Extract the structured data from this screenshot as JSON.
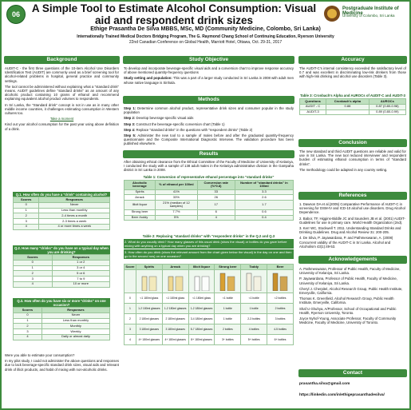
{
  "header": {
    "badge": "06",
    "title": "A Simple Tool to Estimate Alcohol Consumption: Visual aid and respondent drink sizes",
    "author": "Ethige Prasantha De Silva MBBS, MSc, MD (Community Medicine, Colombo, Sri Lanka)",
    "affiliation": "Internationally Trained Medical Doctors Bridging Program, The G. Raymond Chang School of Continuing Education, Ryerson University",
    "conference": "22nd Canadian Conference on Global Health, Marriott Hotel, Ottawa, Oct. 29-31, 2017",
    "logo": "Postgraduate Institute of Medicine",
    "logo_sub": "University of Colombo, Sri Lanka"
  },
  "background": {
    "heading": "Background",
    "paragraphs": [
      "AUDIT-C - the first three questions of the 10-item Alcohol Use Disorders Identification Test (AUDIT) are commonly used as a brief screening tool for alcohol-related problems in hospital, general practice and community settings.",
      "The tool cannot be administered without explaining what a \"standard drink\" means. AUDIT guidelines define \"standard drinks\" as an amount of any alcoholic product containing 10 grams of ethanol and recommend explaining equivalent alcohol product volumes to respondents.",
      "In Sri Lanka, the \"Standard drink\" concept is not in use as in many other middle income countries, it challenges estimating consumption in Western cultures too."
    ],
    "link": "Take a moment",
    "prompt": "Kind out your alcohol consumption for the past year using above definition of a drink."
  },
  "q1": {
    "caption": "Q.1. How often do you have a \"drink\" containing alcohol?",
    "header": [
      "Scores",
      "Responses"
    ],
    "rows": [
      [
        "0",
        "Never"
      ],
      [
        "1",
        "Less than monthly"
      ],
      [
        "2",
        "2-4 times a month"
      ],
      [
        "3",
        "2-3 times a week"
      ],
      [
        "4",
        "4 or more times a week"
      ]
    ]
  },
  "q2": {
    "caption": "Q.2. How many \"drinks\" do you have on a typical day when you are drinking?",
    "header": [
      "Scores",
      "Responses"
    ],
    "rows": [
      [
        "0",
        "1 or 2"
      ],
      [
        "1",
        "3 or 4"
      ],
      [
        "2",
        "5 or 6"
      ],
      [
        "3",
        "7 to 9"
      ],
      [
        "4",
        "10 or more"
      ]
    ]
  },
  "q3": {
    "caption": "Q.3. How often do you have six or more \"drinks\" on one occasion?",
    "header": [
      "Scores",
      "Responses"
    ],
    "rows": [
      [
        "0",
        "Never"
      ],
      [
        "1",
        "Less than monthly"
      ],
      [
        "2",
        "Monthly"
      ],
      [
        "3",
        "Weekly"
      ],
      [
        "4",
        "Daily or almost daily"
      ]
    ]
  },
  "left_end": {
    "question": "Were you able to estimate your consumption?",
    "text": "In my pilot study, I could not administer the above questions and responses due to lack beverage-specific standard drink sizes, visual aids and relevant drink of illicit products, and habit of mixing with non-alcoholic drinks."
  },
  "objective": {
    "heading": "Study Objective",
    "text": "To develop and incorporate beverage-specific visual aids and a conversion chart to improve response accuracy of above mentioned quantity-frequency questions",
    "setting_label": "Study setting and population:",
    "setting": "This was a part of a larger study conducted in Sri Lanka in 2008 with adult men whose native language is Sinhala."
  },
  "methods": {
    "heading": "Methods",
    "steps": [
      [
        "Step 1:",
        "Determine common alcohol product, representative drink sizes and consumer popular in the study population"
      ],
      [
        "Step 2:",
        "Develop beverage-specific visual aids"
      ],
      [
        "Step 3:",
        "Construct the beverage-specific conversion chart (Table 1)"
      ],
      [
        "Step 4:",
        "Replace \"standard drinks\" in the questions with \"respondent drinks\" (Table 2)"
      ],
      [
        "Step 5:",
        "Administer the new tool to a sample of males before and after the graduated quantity-frequency questionnaire and the Composite International Diagnostic Interview. The validation procedure has been published elsewhere."
      ]
    ]
  },
  "results": {
    "heading": "Results",
    "text": "After obtaining ethical clearance from the Ethical Committee of the Faculty of Medicine of University of Kelaniya, I conducted the study with a sample of 138 adult males in the Kelaniya administrative division in the Gampaha district in Sri Lanka in 2008."
  },
  "table1": {
    "caption": "Table 1: Conversion of representative ethanol percentage into \"standard drinks\"",
    "header": [
      "Alcoholic beverage",
      "% of ethanol per 100ml",
      "Conversion rate (%*0.8)",
      "Number of \"standard drinks\" in 100ml"
    ],
    "rows": [
      [
        "Spirits",
        "41%",
        "33",
        "3.3"
      ],
      [
        "Arrack",
        "33%",
        "26",
        "2.6"
      ],
      [
        "Illicit liquor",
        "21% (median of 12 samples)",
        "17",
        "1.7"
      ],
      [
        "Strong beer",
        "7.7%",
        "6",
        "0.6"
      ],
      [
        "Beer /toddy",
        "5%",
        "4",
        "0.4"
      ]
    ]
  },
  "table2": {
    "caption": "Table 2: Replacing \"standard drinks\" with \"respondent drinks\" in the Q.2 and Q.3",
    "q2": "2. What do you usually drink? How many glasses of this usual drink (show the visual) or bottles do you gave before mixing with anything on a typical day when you are drinking?",
    "q3": "3. How often do you drink (show the relevant amount from the chart given below the visual) in the day on one and then go to the second row) on one occasion?"
  },
  "visual_aid": {
    "score_label": "Score",
    "header": [
      "Spirits",
      "Arrack",
      "Illicit liquor",
      "Strong beer",
      "Toddy",
      "Beer"
    ],
    "rows": [
      [
        "0",
        "<1 180ml glass",
        "<1 180ml glass",
        "<1 180ml glass",
        "<1 bottle",
        "<1 bottle",
        "<2 bottles"
      ],
      [
        "1",
        "1-2 180ml glasses",
        "1-2 180ml glasses",
        "1-2 180ml glasses",
        "1 bottle",
        "1 bottle",
        "2 bottles"
      ],
      [
        "2",
        "2 180ml glasses",
        "2 180ml glasses",
        "3-4 180ml glasses",
        "1 bottle",
        "2-3 bottles",
        "3 bottles"
      ],
      [
        "3",
        "3 180ml glasses",
        "3 180ml glasses",
        "5-7 180ml glasses",
        "2 bottles",
        "4 bottles",
        "4-5 bottles"
      ],
      [
        "4",
        "4+ 180ml glasses",
        "4+ 180ml glasses",
        "8+ 180ml glasses",
        "3+ bottles",
        "5+ bottles",
        "6+ bottles"
      ]
    ]
  },
  "accuracy": {
    "heading": "Accuracy",
    "text": "The AUDIT-C's internal consistency exceeded the satisfactory level of 0.7 and was excellent in discriminating low-risk drinkers from those with high-risk drinking and alcohol use disorders (Table 3)."
  },
  "table3": {
    "caption": "Table 3: Cronbach's Alpha and AUROCs of AUDIT-C and AUDIT-3",
    "header": [
      "Questions",
      "Cronbach's alpha",
      "AUROCs"
    ],
    "rows": [
      [
        "AUDIT - C",
        "0.88",
        "0.87 (0.80-0.98)"
      ],
      [
        "AUDIT-3",
        "",
        "0.89 (0.80-0.99)"
      ]
    ]
  },
  "conclusion": {
    "heading": "Conclusion",
    "paragraphs": [
      "The new standard and third AUDIT questions are reliable and valid for use in Sri Lanka. The new tool reduced interviewer and respondent burden of estimating ethanol consumption in terms of \"standard drinks\".",
      "The methodology could be adapted in any country setting."
    ]
  },
  "references": {
    "heading": "References",
    "items": [
      "1. Dawson DA et al.(2005) Comparative Performance of AUDIT-C in screening for DSM-IV and ICD-10 alcohol use disorders. Drug Alcohol Dependence.",
      "2. Babor, TF, Higgins-Biddle JC and Saunders JB et al. (2001) AUDIT-Guidelines for use in primary care. World Health Organization (2nd).",
      "3. Kerr WC, Stockwell T. 2011. Understanding Standard Drinks and Drinking Guidelines. Drug and Alcohol Review 31: 200-205.",
      "4. De Silva, P. Jayawardana, P. and Pathmeswaran, A. (2008) Concurrent validity of the AUDIT-C in Sri Lanka. Alcohol and Alcoholism 43(1):49-53."
    ]
  },
  "acknowledgements": {
    "heading": "Acknowledgements",
    "items": [
      "A. Pathmeswaran, Professor of Public Health, Faculty of Medicine, University of Kelaniya, Sri Lanka.",
      "P. Jayawardana, Professor of Public Health, Faculty of Medicine, University of Kelaniya, Sri Lanka.",
      "Cheryl J. Cherpitel, Alcohol Research Group, Public Health Institute, Emeryville, California.",
      "Thomas K. Greenfield, Alcohol Research Group, Public Health Institute, Emeryville, California.",
      "Shaf U Ghuhya, A/Professor, School of Occupational and Public Health, Ryerson University, Toronto.",
      "Joyce Nyhof-Young, Associate Professor, Faculty of Community Medicine, Faculty of Medicine, University of Toronto."
    ]
  },
  "contact": {
    "heading": "Contact",
    "email": "prasantha.silva@gmail.com",
    "linkedin": "https://linkedin.com/in/ethigeprasanthadesilva/"
  }
}
